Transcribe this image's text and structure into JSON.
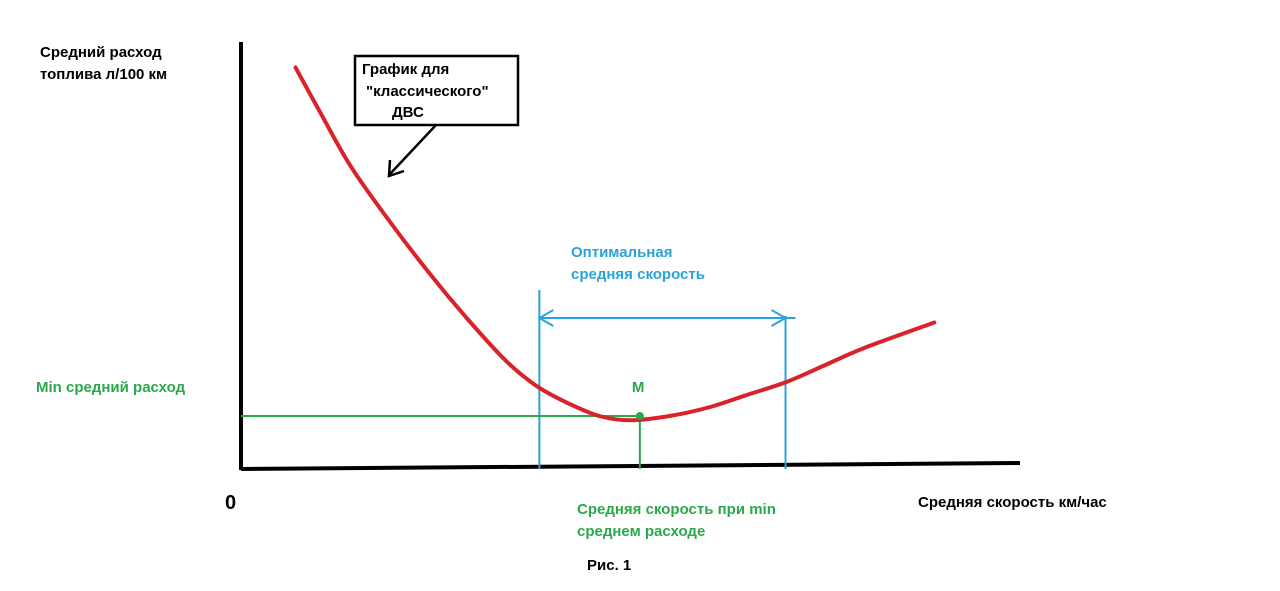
{
  "chart_data": {
    "type": "line",
    "ylabel": [
      "Средний расход",
      "топлива л/100 км"
    ],
    "xlabel": "Средняя скорость км/час",
    "origin_label": "0",
    "caption": "Рис. 1",
    "series": [
      {
        "name": [
          "График для",
          "\"классического\"",
          "ДВС"
        ],
        "color": "#d9232a",
        "x": [
          0.07,
          0.1,
          0.14,
          0.19,
          0.24,
          0.29,
          0.34,
          0.38,
          0.42,
          0.46,
          0.5,
          0.55,
          0.6,
          0.65,
          0.7,
          0.75,
          0.8,
          0.89
        ],
        "y": [
          0.94,
          0.84,
          0.71,
          0.58,
          0.46,
          0.35,
          0.25,
          0.19,
          0.15,
          0.12,
          0.11,
          0.12,
          0.14,
          0.17,
          0.2,
          0.24,
          0.28,
          0.34
        ]
      }
    ],
    "xlim": [
      0,
      1
    ],
    "ylim": [
      0,
      1
    ],
    "minimum_point": {
      "label": "М",
      "x": 0.512,
      "y": 0.12,
      "color": "#2aa84a"
    },
    "min_y_label": "Min средний расход",
    "min_x_label": [
      "Средняя скорость при min",
      "среднем расходе"
    ],
    "optimal_range": {
      "label": [
        "Оптимальная",
        "средняя скорость"
      ],
      "x_start": 0.383,
      "x_end": 0.699,
      "color": "#29a3dc"
    },
    "grid": false,
    "colors": {
      "axis": "#000000",
      "curve": "#d9232a",
      "optimal": "#29a3dc",
      "minimum": "#2aa84a"
    }
  }
}
